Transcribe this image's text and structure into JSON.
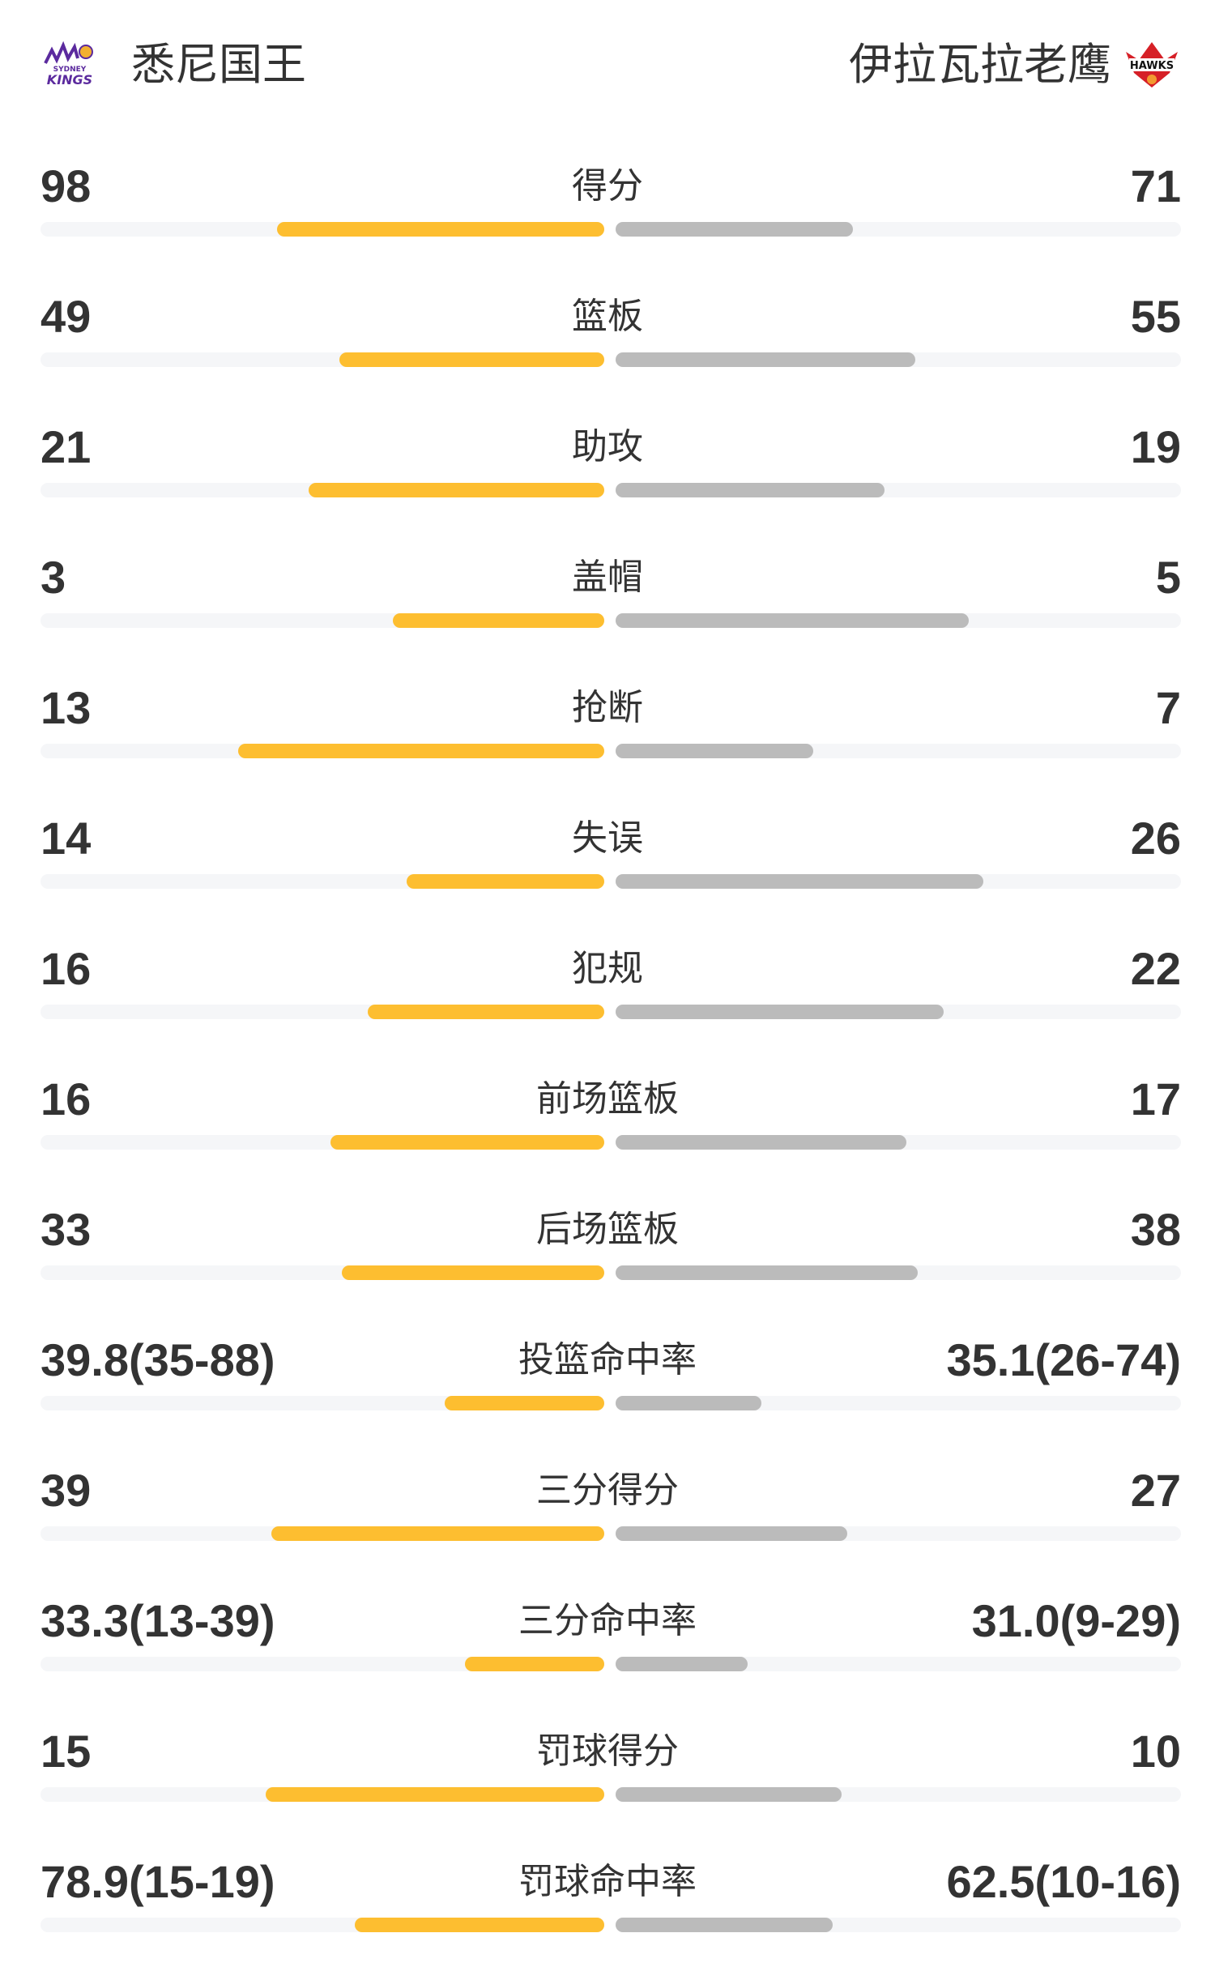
{
  "header": {
    "home_team": "悉尼国王",
    "away_team": "伊拉瓦拉老鹰",
    "home_logo": {
      "icon": "sydney-kings-logo",
      "text": "SYDNEY KINGS"
    },
    "away_logo": {
      "icon": "illawarra-hawks-logo",
      "text": "HAWKS"
    }
  },
  "colors": {
    "home_bar": "#FDBE30",
    "away_bar": "#BBBBBB",
    "track": "#F5F6F8",
    "text": "#333333"
  },
  "stats": [
    {
      "label": "得分",
      "home": "98",
      "away": "71",
      "home_fill": 0.58,
      "away_fill": 0.42
    },
    {
      "label": "篮板",
      "home": "49",
      "away": "55",
      "home_fill": 0.47,
      "away_fill": 0.53
    },
    {
      "label": "助攻",
      "home": "21",
      "away": "19",
      "home_fill": 0.525,
      "away_fill": 0.475
    },
    {
      "label": "盖帽",
      "home": "3",
      "away": "5",
      "home_fill": 0.375,
      "away_fill": 0.625
    },
    {
      "label": "抢断",
      "home": "13",
      "away": "7",
      "home_fill": 0.65,
      "away_fill": 0.35
    },
    {
      "label": "失误",
      "home": "14",
      "away": "26",
      "home_fill": 0.35,
      "away_fill": 0.65
    },
    {
      "label": "犯规",
      "home": "16",
      "away": "22",
      "home_fill": 0.42,
      "away_fill": 0.58
    },
    {
      "label": "前场篮板",
      "home": "16",
      "away": "17",
      "home_fill": 0.485,
      "away_fill": 0.515
    },
    {
      "label": "后场篮板",
      "home": "33",
      "away": "38",
      "home_fill": 0.465,
      "away_fill": 0.535
    },
    {
      "label": "投篮命中率",
      "home": "39.8(35-88)",
      "away": "35.1(26-74)",
      "home_fill": 0.283,
      "away_fill": 0.258
    },
    {
      "label": "三分得分",
      "home": "39",
      "away": "27",
      "home_fill": 0.59,
      "away_fill": 0.41
    },
    {
      "label": "三分命中率",
      "home": "33.3(13-39)",
      "away": "31.0(9-29)",
      "home_fill": 0.247,
      "away_fill": 0.234
    },
    {
      "label": "罚球得分",
      "home": "15",
      "away": "10",
      "home_fill": 0.6,
      "away_fill": 0.4
    },
    {
      "label": "罚球命中率",
      "home": "78.9(15-19)",
      "away": "62.5(10-16)",
      "home_fill": 0.442,
      "away_fill": 0.384
    }
  ]
}
